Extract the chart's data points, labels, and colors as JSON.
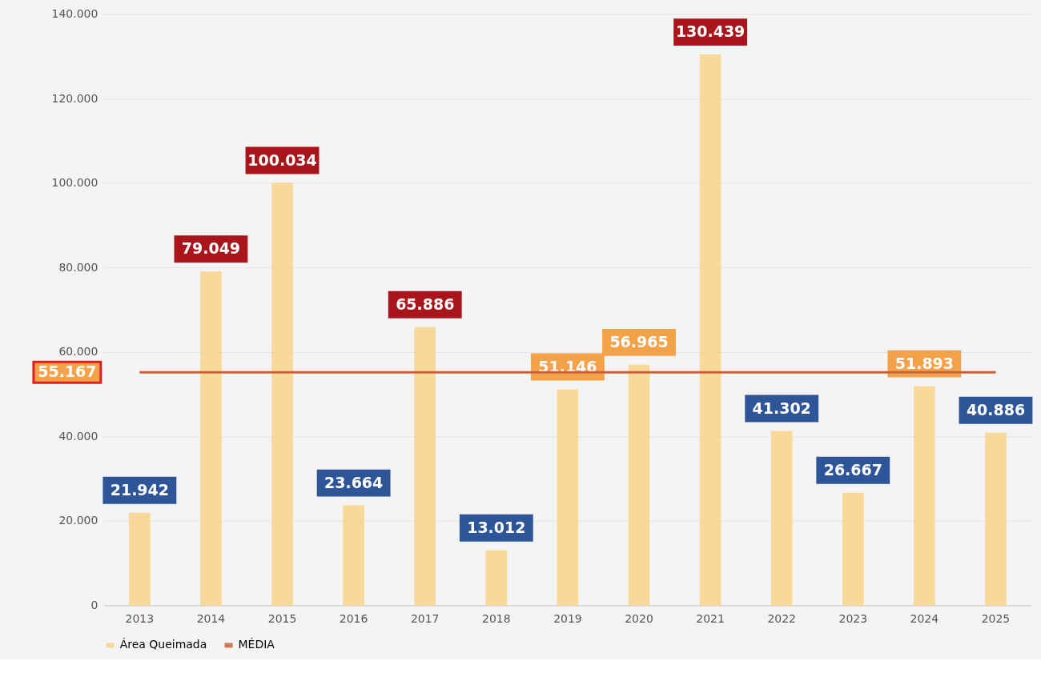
{
  "chart_data": {
    "type": "bar",
    "categories": [
      "2013",
      "2014",
      "2015",
      "2016",
      "2017",
      "2018",
      "2019",
      "2020",
      "2021",
      "2022",
      "2023",
      "2024",
      "2025"
    ],
    "series": [
      {
        "name": "Área Queimada",
        "color": "#f8d48a",
        "values": [
          21942,
          79049,
          100034,
          23664,
          65886,
          13012,
          51146,
          56965,
          130439,
          41302,
          26667,
          51893,
          40886
        ],
        "value_labels": [
          "21.942",
          "79.049",
          "100.034",
          "23.664",
          "65.886",
          "13.012",
          "51.146",
          "56.965",
          "130.439",
          "41.302",
          "26.667",
          "51.893",
          "40.886"
        ]
      },
      {
        "name": "MÉDIA",
        "type": "line",
        "color": "#c8643c",
        "values": [
          55167,
          55167,
          55167,
          55167,
          55167,
          55167,
          55167,
          55167,
          55167,
          55167,
          55167,
          55167,
          55167
        ]
      }
    ],
    "annotations": [
      "55.167"
    ],
    "ylim": [
      0,
      140000
    ],
    "yticks": [
      {
        "value": 0,
        "label": "0"
      },
      {
        "value": 20000,
        "label": "20.000"
      },
      {
        "value": 40000,
        "label": "40.000"
      },
      {
        "value": 60000,
        "label": "60.000"
      },
      {
        "value": 80000,
        "label": "80.000"
      },
      {
        "value": 100000,
        "label": "100.000"
      },
      {
        "value": 120000,
        "label": "120.000"
      },
      {
        "value": 140000,
        "label": "140.000"
      }
    ],
    "grid": "y",
    "legend": "bottom"
  }
}
